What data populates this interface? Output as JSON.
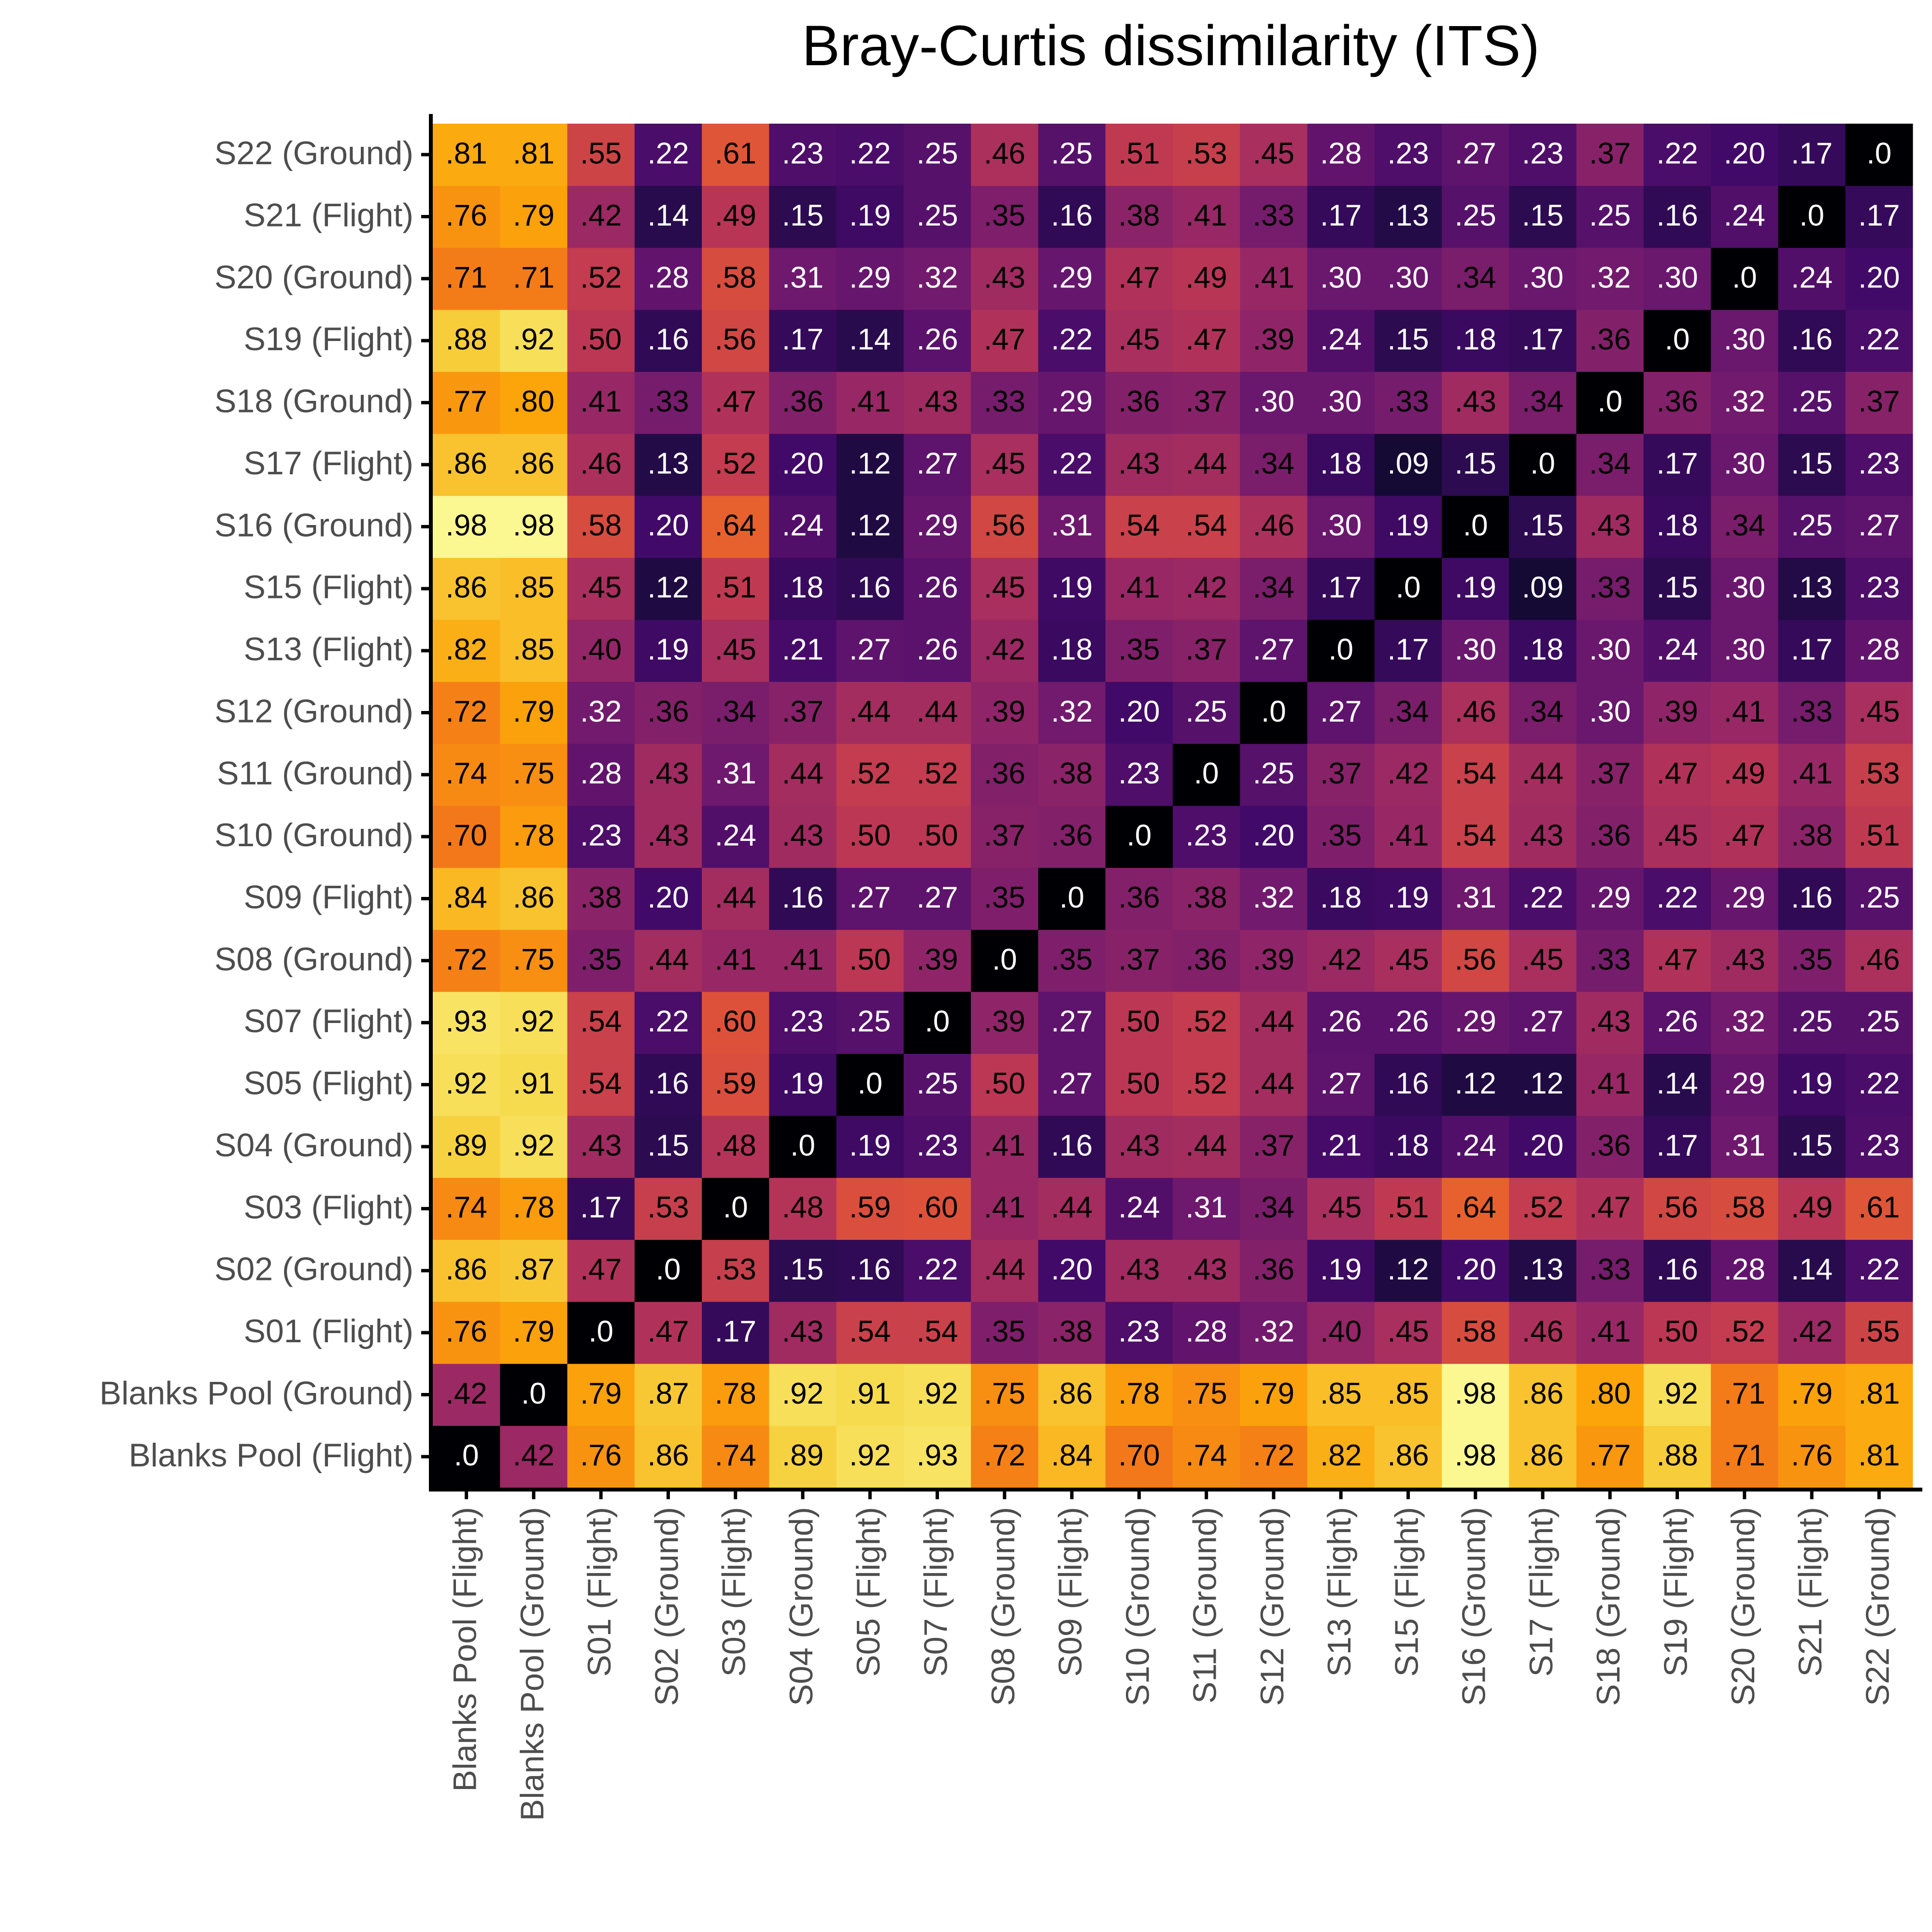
{
  "chart_data": {
    "type": "heatmap",
    "title": "Bray-Curtis dissimilarity (ITS)",
    "x": [
      "Blanks Pool (Flight)",
      "Blanks Pool (Ground)",
      "S01 (Flight)",
      "S02 (Ground)",
      "S03 (Flight)",
      "S04 (Ground)",
      "S05 (Flight)",
      "S07 (Flight)",
      "S08 (Ground)",
      "S09 (Flight)",
      "S10 (Ground)",
      "S11 (Ground)",
      "S12 (Ground)",
      "S13 (Flight)",
      "S15 (Flight)",
      "S16 (Ground)",
      "S17 (Flight)",
      "S18 (Ground)",
      "S19 (Flight)",
      "S20 (Ground)",
      "S21 (Flight)",
      "S22 (Ground)"
    ],
    "y": [
      "Blanks Pool (Flight)",
      "Blanks Pool (Ground)",
      "S01 (Flight)",
      "S02 (Ground)",
      "S03 (Flight)",
      "S04 (Ground)",
      "S05 (Flight)",
      "S07 (Flight)",
      "S08 (Ground)",
      "S09 (Flight)",
      "S10 (Ground)",
      "S11 (Ground)",
      "S12 (Ground)",
      "S13 (Flight)",
      "S15 (Flight)",
      "S16 (Ground)",
      "S17 (Flight)",
      "S18 (Ground)",
      "S19 (Flight)",
      "S20 (Ground)",
      "S21 (Flight)",
      "S22 (Ground)"
    ],
    "z": [
      [
        0,
        0.42,
        0.76,
        0.86,
        0.74,
        0.89,
        0.92,
        0.93,
        0.72,
        0.84,
        0.7,
        0.74,
        0.72,
        0.82,
        0.86,
        0.98,
        0.86,
        0.77,
        0.88,
        0.71,
        0.76,
        0.81
      ],
      [
        0.42,
        0,
        0.79,
        0.87,
        0.78,
        0.92,
        0.91,
        0.92,
        0.75,
        0.86,
        0.78,
        0.75,
        0.79,
        0.85,
        0.85,
        0.98,
        0.86,
        0.8,
        0.92,
        0.71,
        0.79,
        0.81
      ],
      [
        0.76,
        0.79,
        0,
        0.47,
        0.17,
        0.43,
        0.54,
        0.54,
        0.35,
        0.38,
        0.23,
        0.28,
        0.32,
        0.4,
        0.45,
        0.58,
        0.46,
        0.41,
        0.5,
        0.52,
        0.42,
        0.55
      ],
      [
        0.86,
        0.87,
        0.47,
        0,
        0.53,
        0.15,
        0.16,
        0.22,
        0.44,
        0.2,
        0.43,
        0.43,
        0.36,
        0.19,
        0.12,
        0.2,
        0.13,
        0.33,
        0.16,
        0.28,
        0.14,
        0.22
      ],
      [
        0.74,
        0.78,
        0.17,
        0.53,
        0,
        0.48,
        0.59,
        0.6,
        0.41,
        0.44,
        0.24,
        0.31,
        0.34,
        0.45,
        0.51,
        0.64,
        0.52,
        0.47,
        0.56,
        0.58,
        0.49,
        0.61
      ],
      [
        0.89,
        0.92,
        0.43,
        0.15,
        0.48,
        0,
        0.19,
        0.23,
        0.41,
        0.16,
        0.43,
        0.44,
        0.37,
        0.21,
        0.18,
        0.24,
        0.2,
        0.36,
        0.17,
        0.31,
        0.15,
        0.23
      ],
      [
        0.92,
        0.91,
        0.54,
        0.16,
        0.59,
        0.19,
        0,
        0.25,
        0.5,
        0.27,
        0.5,
        0.52,
        0.44,
        0.27,
        0.16,
        0.12,
        0.12,
        0.41,
        0.14,
        0.29,
        0.19,
        0.22
      ],
      [
        0.93,
        0.92,
        0.54,
        0.22,
        0.6,
        0.23,
        0.25,
        0,
        0.39,
        0.27,
        0.5,
        0.52,
        0.44,
        0.26,
        0.26,
        0.29,
        0.27,
        0.43,
        0.26,
        0.32,
        0.25,
        0.25
      ],
      [
        0.72,
        0.75,
        0.35,
        0.44,
        0.41,
        0.41,
        0.5,
        0.39,
        0,
        0.35,
        0.37,
        0.36,
        0.39,
        0.42,
        0.45,
        0.56,
        0.45,
        0.33,
        0.47,
        0.43,
        0.35,
        0.46
      ],
      [
        0.84,
        0.86,
        0.38,
        0.2,
        0.44,
        0.16,
        0.27,
        0.27,
        0.35,
        0,
        0.36,
        0.38,
        0.32,
        0.18,
        0.19,
        0.31,
        0.22,
        0.29,
        0.22,
        0.29,
        0.16,
        0.25
      ],
      [
        0.7,
        0.78,
        0.23,
        0.43,
        0.24,
        0.43,
        0.5,
        0.5,
        0.37,
        0.36,
        0,
        0.23,
        0.2,
        0.35,
        0.41,
        0.54,
        0.43,
        0.36,
        0.45,
        0.47,
        0.38,
        0.51
      ],
      [
        0.74,
        0.75,
        0.28,
        0.43,
        0.31,
        0.44,
        0.52,
        0.52,
        0.36,
        0.38,
        0.23,
        0,
        0.25,
        0.37,
        0.42,
        0.54,
        0.44,
        0.37,
        0.47,
        0.49,
        0.41,
        0.53
      ],
      [
        0.72,
        0.79,
        0.32,
        0.36,
        0.34,
        0.37,
        0.44,
        0.44,
        0.39,
        0.32,
        0.2,
        0.25,
        0,
        0.27,
        0.34,
        0.46,
        0.34,
        0.3,
        0.39,
        0.41,
        0.33,
        0.45
      ],
      [
        0.82,
        0.85,
        0.4,
        0.19,
        0.45,
        0.21,
        0.27,
        0.26,
        0.42,
        0.18,
        0.35,
        0.37,
        0.27,
        0,
        0.17,
        0.3,
        0.18,
        0.3,
        0.24,
        0.3,
        0.17,
        0.28
      ],
      [
        0.86,
        0.85,
        0.45,
        0.12,
        0.51,
        0.18,
        0.16,
        0.26,
        0.45,
        0.19,
        0.41,
        0.42,
        0.34,
        0.17,
        0,
        0.19,
        0.09,
        0.33,
        0.15,
        0.3,
        0.13,
        0.23
      ],
      [
        0.98,
        0.98,
        0.58,
        0.2,
        0.64,
        0.24,
        0.12,
        0.29,
        0.56,
        0.31,
        0.54,
        0.54,
        0.46,
        0.3,
        0.19,
        0,
        0.15,
        0.43,
        0.18,
        0.34,
        0.25,
        0.27
      ],
      [
        0.86,
        0.86,
        0.46,
        0.13,
        0.52,
        0.2,
        0.12,
        0.27,
        0.45,
        0.22,
        0.43,
        0.44,
        0.34,
        0.18,
        0.09,
        0.15,
        0,
        0.34,
        0.17,
        0.3,
        0.15,
        0.23
      ],
      [
        0.77,
        0.8,
        0.41,
        0.33,
        0.47,
        0.36,
        0.41,
        0.43,
        0.33,
        0.29,
        0.36,
        0.37,
        0.3,
        0.3,
        0.33,
        0.43,
        0.34,
        0,
        0.36,
        0.32,
        0.25,
        0.37
      ],
      [
        0.88,
        0.92,
        0.5,
        0.16,
        0.56,
        0.17,
        0.14,
        0.26,
        0.47,
        0.22,
        0.45,
        0.47,
        0.39,
        0.24,
        0.15,
        0.18,
        0.17,
        0.36,
        0,
        0.3,
        0.16,
        0.22
      ],
      [
        0.71,
        0.71,
        0.52,
        0.28,
        0.58,
        0.31,
        0.29,
        0.32,
        0.43,
        0.29,
        0.47,
        0.49,
        0.41,
        0.3,
        0.3,
        0.34,
        0.3,
        0.32,
        0.3,
        0,
        0.24,
        0.2
      ],
      [
        0.76,
        0.79,
        0.42,
        0.14,
        0.49,
        0.15,
        0.19,
        0.25,
        0.35,
        0.16,
        0.38,
        0.41,
        0.33,
        0.17,
        0.13,
        0.25,
        0.15,
        0.25,
        0.16,
        0.24,
        0,
        0.17
      ],
      [
        0.81,
        0.81,
        0.55,
        0.22,
        0.61,
        0.23,
        0.22,
        0.25,
        0.46,
        0.25,
        0.51,
        0.53,
        0.45,
        0.28,
        0.23,
        0.27,
        0.23,
        0.37,
        0.22,
        0.2,
        0.17,
        0
      ]
    ],
    "value_labels": [
      [
        ".0",
        ".42",
        ".76",
        ".86",
        ".74",
        ".89",
        ".92",
        ".93",
        ".72",
        ".84",
        ".70",
        ".74",
        ".72",
        ".82",
        ".86",
        ".98",
        ".86",
        ".77",
        ".88",
        ".71",
        ".76",
        ".81"
      ],
      [
        ".42",
        ".0",
        ".79",
        ".87",
        ".78",
        ".92",
        ".91",
        ".92",
        ".75",
        ".86",
        ".78",
        ".75",
        ".79",
        ".85",
        ".85",
        ".98",
        ".86",
        ".80",
        ".92",
        ".71",
        ".79",
        ".81"
      ],
      [
        ".76",
        ".79",
        ".0",
        ".47",
        ".17",
        ".43",
        ".54",
        ".54",
        ".35",
        ".38",
        ".23",
        ".28",
        ".32",
        ".40",
        ".45",
        ".58",
        ".46",
        ".41",
        ".50",
        ".52",
        ".42",
        ".55"
      ],
      [
        ".86",
        ".87",
        ".47",
        ".0",
        ".53",
        ".15",
        ".16",
        ".22",
        ".44",
        ".20",
        ".43",
        ".43",
        ".36",
        ".19",
        ".12",
        ".20",
        ".13",
        ".33",
        ".16",
        ".28",
        ".14",
        ".22"
      ],
      [
        ".74",
        ".78",
        ".17",
        ".53",
        ".0",
        ".48",
        ".59",
        ".60",
        ".41",
        ".44",
        ".24",
        ".31",
        ".34",
        ".45",
        ".51",
        ".64",
        ".52",
        ".47",
        ".56",
        ".58",
        ".49",
        ".61"
      ],
      [
        ".89",
        ".92",
        ".43",
        ".15",
        ".48",
        ".0",
        ".19",
        ".23",
        ".41",
        ".16",
        ".43",
        ".44",
        ".37",
        ".21",
        ".18",
        ".24",
        ".20",
        ".36",
        ".17",
        ".31",
        ".15",
        ".23"
      ],
      [
        ".92",
        ".91",
        ".54",
        ".16",
        ".59",
        ".19",
        ".0",
        ".25",
        ".50",
        ".27",
        ".50",
        ".52",
        ".44",
        ".27",
        ".16",
        ".12",
        ".12",
        ".41",
        ".14",
        ".29",
        ".19",
        ".22"
      ],
      [
        ".93",
        ".92",
        ".54",
        ".22",
        ".60",
        ".23",
        ".25",
        ".0",
        ".39",
        ".27",
        ".50",
        ".52",
        ".44",
        ".26",
        ".26",
        ".29",
        ".27",
        ".43",
        ".26",
        ".32",
        ".25",
        ".25"
      ],
      [
        ".72",
        ".75",
        ".35",
        ".44",
        ".41",
        ".41",
        ".50",
        ".39",
        ".0",
        ".35",
        ".37",
        ".36",
        ".39",
        ".42",
        ".45",
        ".56",
        ".45",
        ".33",
        ".47",
        ".43",
        ".35",
        ".46"
      ],
      [
        ".84",
        ".86",
        ".38",
        ".20",
        ".44",
        ".16",
        ".27",
        ".27",
        ".35",
        ".0",
        ".36",
        ".38",
        ".32",
        ".18",
        ".19",
        ".31",
        ".22",
        ".29",
        ".22",
        ".29",
        ".16",
        ".25"
      ],
      [
        ".70",
        ".78",
        ".23",
        ".43",
        ".24",
        ".43",
        ".50",
        ".50",
        ".37",
        ".36",
        ".0",
        ".23",
        ".20",
        ".35",
        ".41",
        ".54",
        ".43",
        ".36",
        ".45",
        ".47",
        ".38",
        ".51"
      ],
      [
        ".74",
        ".75",
        ".28",
        ".43",
        ".31",
        ".44",
        ".52",
        ".52",
        ".36",
        ".38",
        ".23",
        ".0",
        ".25",
        ".37",
        ".42",
        ".54",
        ".44",
        ".37",
        ".47",
        ".49",
        ".41",
        ".53"
      ],
      [
        ".72",
        ".79",
        ".32",
        ".36",
        ".34",
        ".37",
        ".44",
        ".44",
        ".39",
        ".32",
        ".20",
        ".25",
        ".0",
        ".27",
        ".34",
        ".46",
        ".34",
        ".30",
        ".39",
        ".41",
        ".33",
        ".45"
      ],
      [
        ".82",
        ".85",
        ".40",
        ".19",
        ".45",
        ".21",
        ".27",
        ".26",
        ".42",
        ".18",
        ".35",
        ".37",
        ".27",
        ".0",
        ".17",
        ".30",
        ".18",
        ".30",
        ".24",
        ".30",
        ".17",
        ".28"
      ],
      [
        ".86",
        ".85",
        ".45",
        ".12",
        ".51",
        ".18",
        ".16",
        ".26",
        ".45",
        ".19",
        ".41",
        ".42",
        ".34",
        ".17",
        ".0",
        ".19",
        ".09",
        ".33",
        ".15",
        ".30",
        ".13",
        ".23"
      ],
      [
        ".98",
        ".98",
        ".58",
        ".20",
        ".64",
        ".24",
        ".12",
        ".29",
        ".56",
        ".31",
        ".54",
        ".54",
        ".46",
        ".30",
        ".19",
        ".0",
        ".15",
        ".43",
        ".18",
        ".34",
        ".25",
        ".27"
      ],
      [
        ".86",
        ".86",
        ".46",
        ".13",
        ".52",
        ".20",
        ".12",
        ".27",
        ".45",
        ".22",
        ".43",
        ".44",
        ".34",
        ".18",
        ".09",
        ".15",
        ".0",
        ".34",
        ".17",
        ".30",
        ".15",
        ".23"
      ],
      [
        ".77",
        ".80",
        ".41",
        ".33",
        ".47",
        ".36",
        ".41",
        ".43",
        ".33",
        ".29",
        ".36",
        ".37",
        ".30",
        ".30",
        ".33",
        ".43",
        ".34",
        ".0",
        ".36",
        ".32",
        ".25",
        ".37"
      ],
      [
        ".88",
        ".92",
        ".50",
        ".16",
        ".56",
        ".17",
        ".14",
        ".26",
        ".47",
        ".22",
        ".45",
        ".47",
        ".39",
        ".24",
        ".15",
        ".18",
        ".17",
        ".36",
        ".0",
        ".30",
        ".16",
        ".22"
      ],
      [
        ".71",
        ".71",
        ".52",
        ".28",
        ".58",
        ".31",
        ".29",
        ".32",
        ".43",
        ".29",
        ".47",
        ".49",
        ".41",
        ".30",
        ".30",
        ".34",
        ".30",
        ".32",
        ".30",
        ".0",
        ".24",
        ".20"
      ],
      [
        ".76",
        ".79",
        ".42",
        ".14",
        ".49",
        ".15",
        ".19",
        ".25",
        ".35",
        ".16",
        ".38",
        ".41",
        ".33",
        ".17",
        ".13",
        ".25",
        ".15",
        ".25",
        ".16",
        ".24",
        ".0",
        ".17"
      ],
      [
        ".81",
        ".81",
        ".55",
        ".22",
        ".61",
        ".23",
        ".22",
        ".25",
        ".46",
        ".25",
        ".51",
        ".53",
        ".45",
        ".28",
        ".23",
        ".27",
        ".23",
        ".37",
        ".22",
        ".20",
        ".17",
        ".0"
      ]
    ],
    "colormap": [
      "#000004",
      "#160b39",
      "#420a68",
      "#6a176e",
      "#932667",
      "#bc3754",
      "#dd513a",
      "#f37819",
      "#fca50a",
      "#f6d746",
      "#fcffa4"
    ],
    "zlim": [
      0,
      1
    ]
  }
}
